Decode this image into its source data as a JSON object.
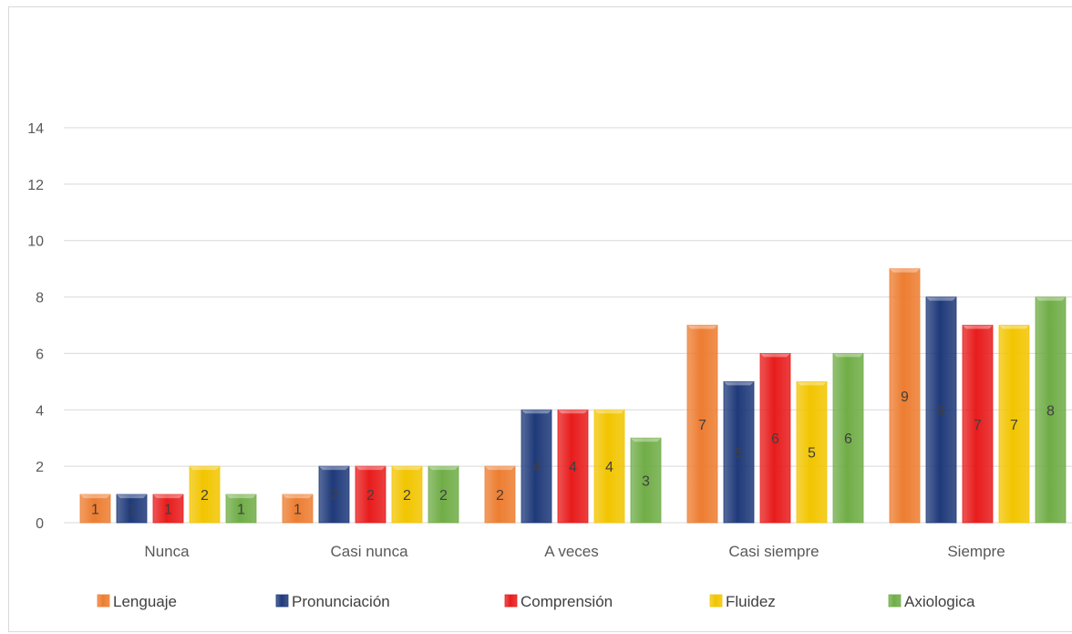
{
  "chart_data": {
    "type": "bar",
    "categories": [
      "Nunca",
      "Casi nunca",
      "A veces",
      "Casi siempre",
      "Siempre"
    ],
    "series": [
      {
        "name": "Lenguaje",
        "values": [
          1,
          1,
          2,
          7,
          9
        ],
        "color": "#ED7D31"
      },
      {
        "name": "Pronunciación",
        "values": [
          1,
          2,
          4,
          5,
          8
        ],
        "color": "#1F3A7A"
      },
      {
        "name": "Comprensión",
        "values": [
          1,
          2,
          4,
          6,
          7
        ],
        "color": "#E81C1C"
      },
      {
        "name": "Fluidez",
        "values": [
          2,
          2,
          4,
          5,
          7
        ],
        "color": "#F2C500"
      },
      {
        "name": "Axiologica",
        "values": [
          1,
          2,
          3,
          6,
          8
        ],
        "color": "#70AD47"
      }
    ],
    "yticks": [
      0,
      2,
      4,
      6,
      8,
      10,
      12,
      14
    ],
    "ylim": [
      0,
      14
    ],
    "grid": true,
    "legend": "bottom",
    "title": "",
    "xlabel": "",
    "ylabel": ""
  }
}
